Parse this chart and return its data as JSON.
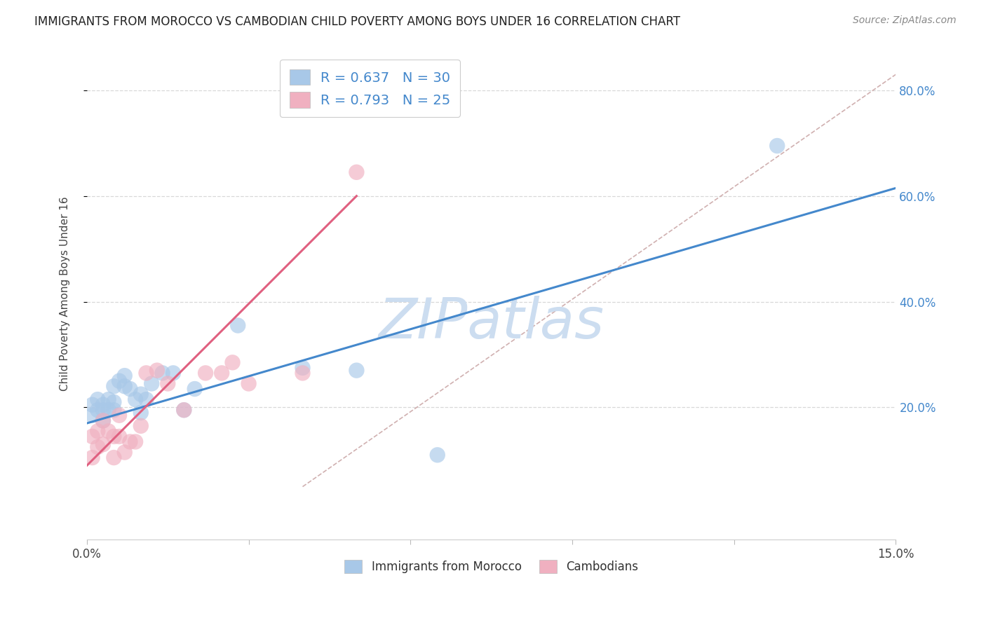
{
  "title": "IMMIGRANTS FROM MOROCCO VS CAMBODIAN CHILD POVERTY AMONG BOYS UNDER 16 CORRELATION CHART",
  "source": "Source: ZipAtlas.com",
  "ylabel": "Child Poverty Among Boys Under 16",
  "ytick_labels_right": [
    "20.0%",
    "40.0%",
    "60.0%",
    "80.0%"
  ],
  "ytick_values": [
    0.2,
    0.4,
    0.6,
    0.8
  ],
  "xmin": 0.0,
  "xmax": 0.15,
  "ymin": -0.05,
  "ymax": 0.88,
  "legend1_R": "0.637",
  "legend1_N": "30",
  "legend2_R": "0.793",
  "legend2_N": "25",
  "blue_color": "#a8c8e8",
  "pink_color": "#f0b0c0",
  "blue_line_color": "#4488cc",
  "pink_line_color": "#e06080",
  "diagonal_color": "#d0b0b0",
  "watermark_color": "#ccddf0",
  "blue_scatter_x": [
    0.001,
    0.001,
    0.002,
    0.002,
    0.003,
    0.003,
    0.003,
    0.004,
    0.004,
    0.005,
    0.005,
    0.005,
    0.006,
    0.007,
    0.007,
    0.008,
    0.009,
    0.01,
    0.01,
    0.011,
    0.012,
    0.014,
    0.016,
    0.018,
    0.02,
    0.028,
    0.04,
    0.05,
    0.065,
    0.128
  ],
  "blue_scatter_y": [
    0.185,
    0.205,
    0.195,
    0.215,
    0.175,
    0.195,
    0.205,
    0.195,
    0.215,
    0.195,
    0.21,
    0.24,
    0.25,
    0.24,
    0.26,
    0.235,
    0.215,
    0.19,
    0.225,
    0.215,
    0.245,
    0.265,
    0.265,
    0.195,
    0.235,
    0.355,
    0.275,
    0.27,
    0.11,
    0.695
  ],
  "pink_scatter_x": [
    0.001,
    0.001,
    0.002,
    0.002,
    0.003,
    0.003,
    0.004,
    0.005,
    0.005,
    0.006,
    0.006,
    0.007,
    0.008,
    0.009,
    0.01,
    0.011,
    0.013,
    0.015,
    0.018,
    0.022,
    0.025,
    0.027,
    0.03,
    0.04,
    0.05
  ],
  "pink_scatter_y": [
    0.145,
    0.105,
    0.125,
    0.155,
    0.175,
    0.13,
    0.155,
    0.145,
    0.105,
    0.145,
    0.185,
    0.115,
    0.135,
    0.135,
    0.165,
    0.265,
    0.27,
    0.245,
    0.195,
    0.265,
    0.265,
    0.285,
    0.245,
    0.265,
    0.645
  ],
  "blue_line_x": [
    0.0,
    0.15
  ],
  "blue_line_y": [
    0.17,
    0.615
  ],
  "pink_line_x": [
    0.0,
    0.05
  ],
  "pink_line_y": [
    0.09,
    0.6
  ],
  "diag_line_x": [
    0.04,
    0.15
  ],
  "diag_line_y": [
    0.05,
    0.83
  ],
  "grid_color": "#d8d8d8",
  "background_color": "#ffffff"
}
